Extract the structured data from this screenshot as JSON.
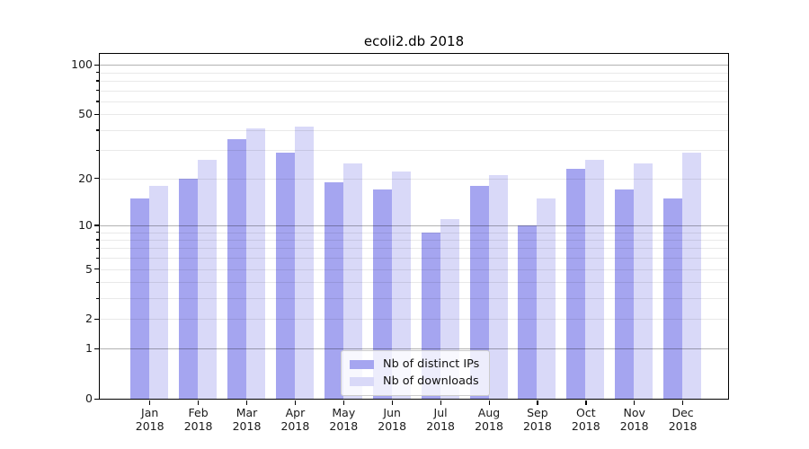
{
  "chart_data": {
    "type": "bar",
    "title": "ecoli2.db 2018",
    "categories": [
      "Jan 2018",
      "Feb 2018",
      "Mar 2018",
      "Apr 2018",
      "May 2018",
      "Jun 2018",
      "Jul 2018",
      "Aug 2018",
      "Sep 2018",
      "Oct 2018",
      "Nov 2018",
      "Dec 2018"
    ],
    "x_tick_month": [
      "Jan",
      "Feb",
      "Mar",
      "Apr",
      "May",
      "Jun",
      "Jul",
      "Aug",
      "Sep",
      "Oct",
      "Nov",
      "Dec"
    ],
    "x_tick_year": "2018",
    "series": [
      {
        "name": "Nb of distinct IPs",
        "color": "#a5a5f0",
        "values": [
          15,
          20,
          35,
          29,
          19,
          17,
          9,
          18,
          10,
          23,
          17,
          15
        ]
      },
      {
        "name": "Nb of downloads",
        "color": "#d9d9f8",
        "values": [
          18,
          26,
          41,
          42,
          25,
          22,
          11,
          21,
          15,
          26,
          25,
          29
        ]
      }
    ],
    "yscale": "log10(value+1), 0 at baseline",
    "ylim": [
      0,
      117
    ],
    "y_tick_values": [
      100,
      50,
      20,
      10,
      5,
      2,
      1,
      0
    ],
    "y_tick_labels": [
      "100",
      "50",
      "20",
      "10",
      "5",
      "2",
      "1",
      "0"
    ],
    "y_major_gridlines": [
      1,
      10,
      100
    ],
    "y_minor_gridlines": [
      2,
      3,
      4,
      5,
      6,
      7,
      8,
      9,
      20,
      30,
      40,
      50,
      60,
      70,
      80,
      90
    ],
    "y_minor_ticks": [
      3,
      4,
      6,
      7,
      8,
      9,
      30,
      40,
      60,
      70,
      80,
      90
    ],
    "grid": true,
    "legend_position": "inside lower-center",
    "bar_edge_color": "none",
    "frame_color": "#000000",
    "background_color": "#ffffff"
  }
}
